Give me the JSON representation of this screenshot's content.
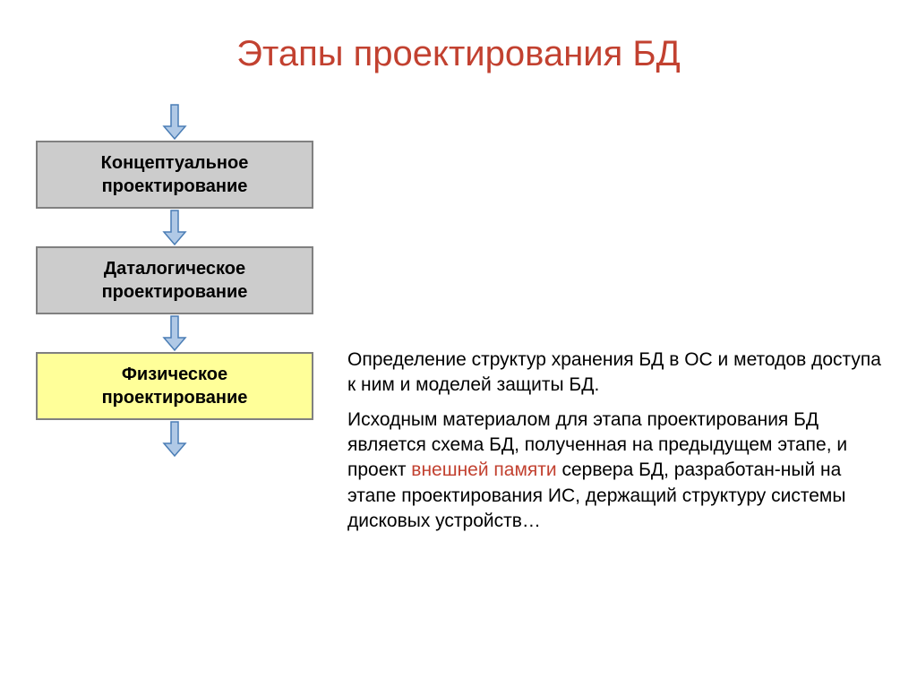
{
  "title": {
    "text": "Этапы проектирования БД",
    "color": "#c24130",
    "fontsize": 40
  },
  "flowchart": {
    "arrow": {
      "fill": "#b0c9e6",
      "stroke": "#4a7db5",
      "stroke_width": 1.5
    },
    "boxes": [
      {
        "lines": [
          "Концептуальное",
          "проектирование"
        ],
        "bg": "#cccccc",
        "border": "#808080"
      },
      {
        "lines": [
          "Даталогическое",
          "проектирование"
        ],
        "bg": "#cccccc",
        "border": "#808080"
      },
      {
        "lines": [
          "Физическое",
          "проектирование"
        ],
        "bg": "#ffff99",
        "border": "#808080"
      }
    ]
  },
  "description": {
    "para1": "Определение структур хранения БД в ОС и методов доступа к ним и моделей защиты БД.",
    "para2_part1": "Исходным материалом для этапа проектирования БД является схема БД, полученная на предыдущем этапе, и проект ",
    "para2_highlight": "внешней памяти",
    "para2_part2": " сервера БД, разработан-ный на этапе проектирования ИС, держащий структуру системы дисковых устройств…",
    "highlight_color": "#c24130",
    "text_color": "#000000",
    "fontsize": 21
  }
}
